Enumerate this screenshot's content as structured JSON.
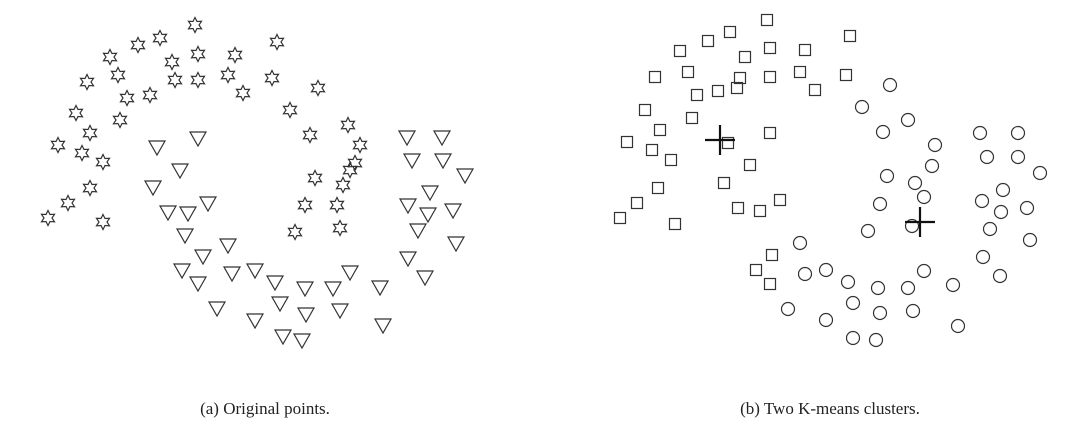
{
  "figure": {
    "panels": [
      {
        "caption": "(a) Original points."
      },
      {
        "caption": "(b) Two K-means clusters."
      }
    ]
  }
}
